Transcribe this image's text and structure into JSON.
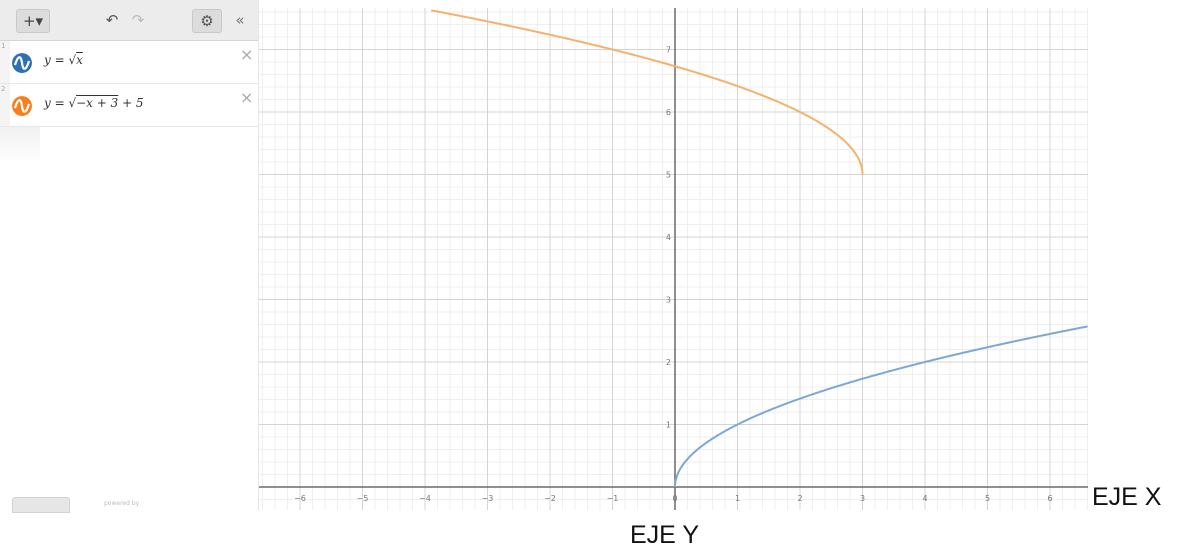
{
  "toolbar": {
    "add_label": "+▾",
    "undo_label": "↶",
    "redo_label": "↷",
    "settings_label": "⚙",
    "collapse_label": "«"
  },
  "expressions": [
    {
      "index": "1",
      "latex_text": "y = √x",
      "color": "#2d70b3",
      "icon": "function-wave-icon",
      "delete": "×"
    },
    {
      "index": "2",
      "latex_text": "y = √−x + 3 + 5",
      "color": "#fa7e19",
      "icon": "function-wave-icon",
      "delete": "×"
    }
  ],
  "expression_1": {
    "prefix": "y = √",
    "radicand": "x"
  },
  "expression_2": {
    "prefix": "y = √",
    "radicand": "−x + 3",
    "suffix": " + 5"
  },
  "footer": {
    "powered_by": "powered by"
  },
  "axis_labels": {
    "x": "EJE X",
    "y": "EJE Y"
  },
  "chart_data": {
    "type": "line",
    "xlim": [
      -6.6,
      6.6
    ],
    "ylim": [
      0,
      7.6
    ],
    "x_ticks": [
      -6,
      -5,
      -4,
      -3,
      -2,
      -1,
      0,
      1,
      2,
      3,
      4,
      5,
      6
    ],
    "y_ticks": [
      1,
      2,
      3,
      4,
      5,
      6,
      7
    ],
    "grid": true,
    "series": [
      {
        "name": "y = √x",
        "color": "#7da7d9",
        "domain": [
          0,
          6.6
        ],
        "formula": "sqrt(x)"
      },
      {
        "name": "y = √(−x + 3) + 5",
        "color": "#f6b26b",
        "domain": [
          -3.9,
          3
        ],
        "formula": "sqrt(-x+3)+5"
      }
    ]
  }
}
